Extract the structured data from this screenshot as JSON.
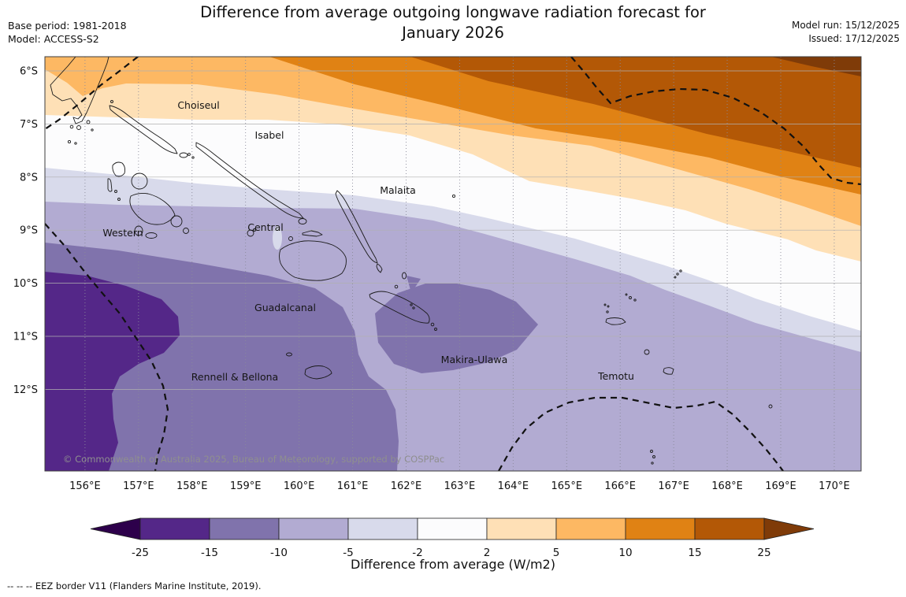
{
  "header": {
    "title_line1": "Difference from average outgoing longwave radiation forecast for",
    "title_line2": "January 2026",
    "base_period": "Base period: 1981-2018",
    "model": "Model: ACCESS-S2",
    "model_run": "Model run: 15/12/2025",
    "issued": "Issued: 17/12/2025"
  },
  "map": {
    "lat_labels": [
      "6°S",
      "7°S",
      "8°S",
      "9°S",
      "10°S",
      "11°S",
      "12°S"
    ],
    "lon_labels": [
      "156°E",
      "157°E",
      "158°E",
      "159°E",
      "160°E",
      "161°E",
      "162°E",
      "163°E",
      "164°E",
      "165°E",
      "166°E",
      "167°E",
      "168°E",
      "169°E",
      "170°E"
    ],
    "province_labels": [
      "Choiseul",
      "Isabel",
      "Malaita",
      "Western",
      "Central",
      "Guadalcanal",
      "Rennell & Bellona",
      "Makira-Ulawa",
      "Temotu"
    ],
    "copyright": "© Commonwealth of Australia 2025, Bureau of Meteorology, supported by COSPPac"
  },
  "palette": {
    "below_neg25": "#2d004b",
    "neg25_neg15": "#542788",
    "neg15_neg10": "#8073ac",
    "neg10_neg5": "#b2abd2",
    "neg5_neg2": "#d8daeb",
    "neg2_2": "#fcfcfd",
    "p2_5": "#fee0b6",
    "p5_10": "#fdb863",
    "p10_15": "#e08214",
    "p15_25": "#b35806",
    "above_25": "#7f3b08"
  },
  "colorbar": {
    "label": "Difference from average (W/m2)",
    "tick_labels": [
      "-25",
      "-15",
      "-10",
      "-5",
      "-2",
      "2",
      "5",
      "10",
      "15",
      "25"
    ],
    "tick_values": [
      -25,
      -15,
      -10,
      -5,
      -2,
      2,
      5,
      10,
      15,
      25
    ],
    "segment_color_keys": [
      "neg25_neg15",
      "neg15_neg10",
      "neg10_neg5",
      "neg5_neg2",
      "neg2_2",
      "p2_5",
      "p5_10",
      "p10_15",
      "p15_25"
    ]
  },
  "footer": {
    "eez_note": "--  --  -- EEZ border V11 (Flanders Marine Institute, 2019)."
  }
}
